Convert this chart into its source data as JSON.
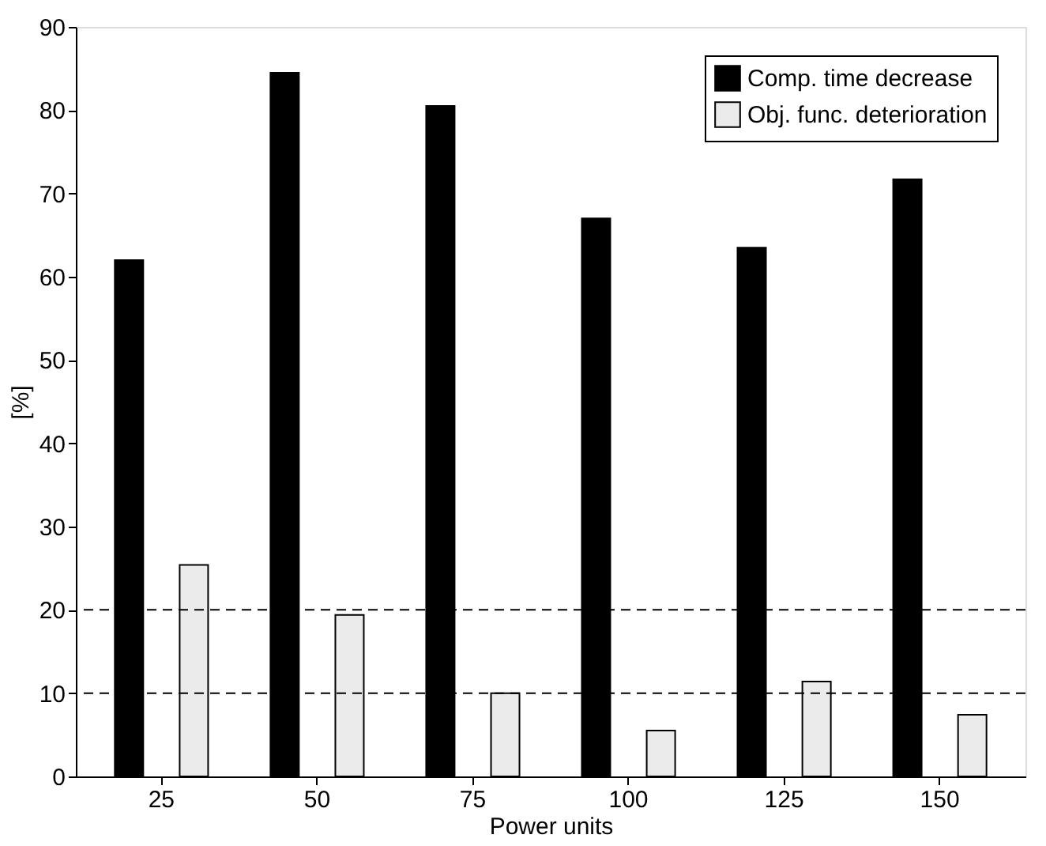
{
  "chart_data": {
    "type": "bar",
    "xlabel": "Power units",
    "ylabel": "[%]",
    "categories": [
      "25",
      "50",
      "75",
      "100",
      "125",
      "150"
    ],
    "series": [
      {
        "name": "Comp. time decrease",
        "color": "#000000",
        "values": [
          62,
          84.5,
          80.5,
          67,
          63.5,
          71.7
        ]
      },
      {
        "name": "Obj. func. deterioration",
        "color": "#ebebeb",
        "values": [
          25.4,
          19.4,
          10,
          5.5,
          11.4,
          7.4
        ]
      }
    ],
    "ylim": [
      0,
      90
    ],
    "yticks": [
      0,
      10,
      20,
      30,
      40,
      50,
      60,
      70,
      80,
      90
    ],
    "ref_lines": [
      {
        "axis": "y",
        "value": 10,
        "label": null,
        "line_style": "dashed",
        "color": "#000000"
      },
      {
        "axis": "y",
        "value": 20,
        "label": null,
        "line_style": "dashed",
        "color": "#000000"
      }
    ],
    "grid": false,
    "legend": "top right"
  }
}
